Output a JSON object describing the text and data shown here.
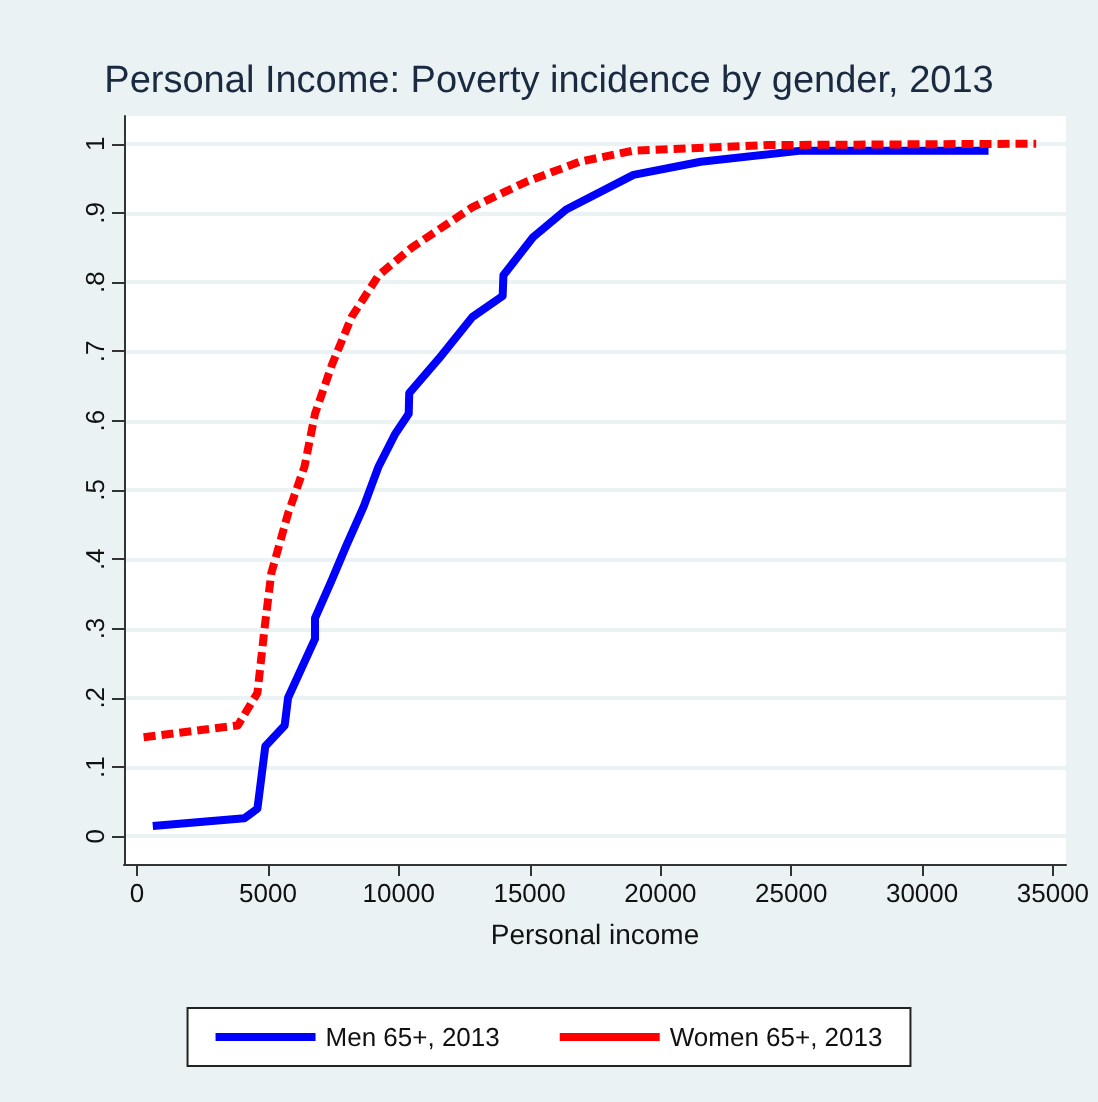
{
  "chart_data": {
    "type": "line",
    "title": "Personal Income: Poverty incidence by gender, 2013",
    "xlabel": "Personal income",
    "xlim": [
      -500,
      35500
    ],
    "xticks": [
      0,
      5000,
      10000,
      15000,
      20000,
      25000,
      30000,
      35000
    ],
    "ylim": [
      -0.04,
      1.04
    ],
    "yticks": [
      0,
      {
        "value": 0.1,
        "label": ".1"
      },
      {
        "value": 0.2,
        "label": ".2"
      },
      {
        "value": 0.3,
        "label": ".3"
      },
      {
        "value": 0.4,
        "label": ".4"
      },
      {
        "value": 0.5,
        "label": ".5"
      },
      {
        "value": 0.6,
        "label": ".6"
      },
      {
        "value": 0.7,
        "label": ".7"
      },
      {
        "value": 0.8,
        "label": ".8"
      },
      {
        "value": 0.9,
        "label": ".9"
      },
      1
    ],
    "grid": "y",
    "legend": "bottom",
    "marker": "none",
    "series": [
      {
        "name": "Men 65+, 2013",
        "color": "#0000ff",
        "line_style": "solid",
        "x": [
          600,
          4100,
          4600,
          4900,
          5640,
          5770,
          6800,
          6800,
          7440,
          8000,
          8670,
          9230,
          9850,
          10380,
          10400,
          11540,
          12820,
          13970,
          14000,
          15130,
          16400,
          18970,
          21540,
          25380,
          32540
        ],
        "values": [
          0.015,
          0.026,
          0.04,
          0.13,
          0.16,
          0.2,
          0.285,
          0.315,
          0.37,
          0.42,
          0.477,
          0.534,
          0.58,
          0.61,
          0.64,
          0.69,
          0.75,
          0.78,
          0.81,
          0.865,
          0.905,
          0.955,
          0.974,
          0.99,
          0.99
        ]
      },
      {
        "name": "Women 65+, 2013",
        "color": "#ff0000",
        "line_style": "dashed",
        "x": [
          250,
          3850,
          4600,
          4870,
          5130,
          5770,
          6400,
          6800,
          7440,
          8200,
          9230,
          10500,
          12800,
          14870,
          16920,
          18970,
          24100,
          34360
        ],
        "values": [
          0.143,
          0.16,
          0.207,
          0.3,
          0.38,
          0.466,
          0.534,
          0.61,
          0.68,
          0.75,
          0.81,
          0.85,
          0.908,
          0.945,
          0.974,
          0.99,
          0.998,
          1.0
        ]
      }
    ]
  }
}
